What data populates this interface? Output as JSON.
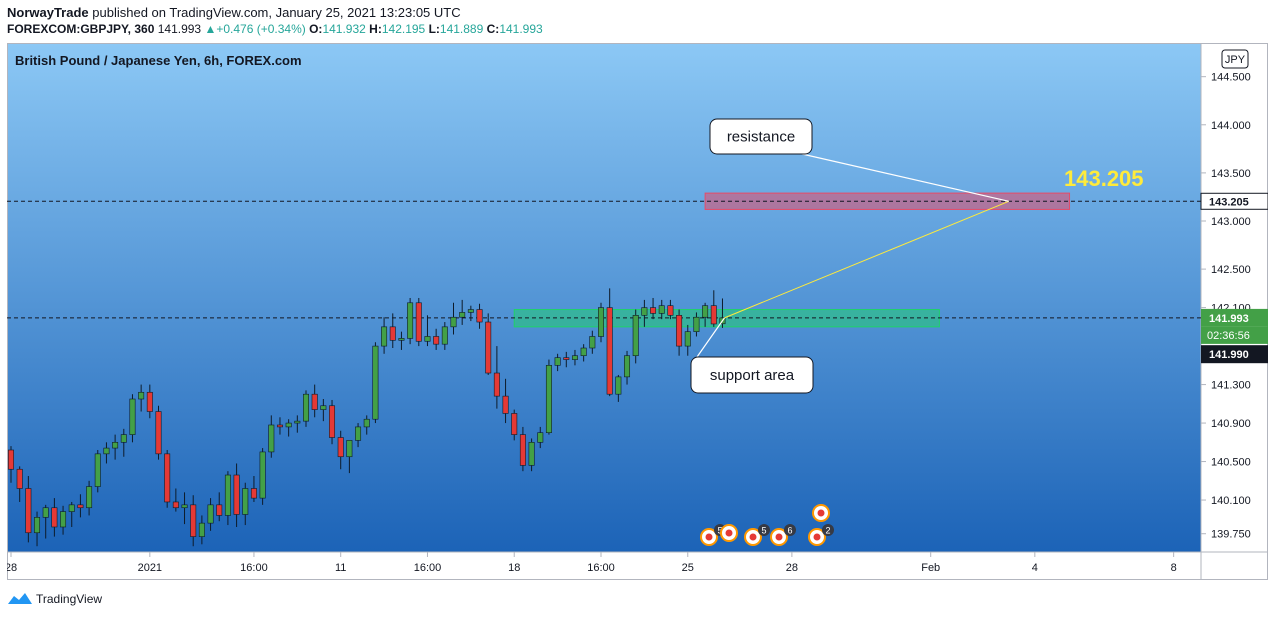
{
  "header": {
    "author": "NorwayTrade",
    "published_text": "published on TradingView.com, January 25, 2021 13:23:05 UTC",
    "symbol": "FOREXCOM:GBPJPY, 360",
    "last": "141.993",
    "change": "+0.476 (+0.34%)",
    "open_label": "O:",
    "open": "141.932",
    "high_label": "H:",
    "high": "142.195",
    "low_label": "L:",
    "low": "141.889",
    "close_label": "C:",
    "close": "141.993"
  },
  "footer": {
    "brand": "TradingView"
  },
  "chart_data": {
    "type": "candlestick",
    "title": "British Pound / Japanese Yen, 6h, FOREX.com",
    "currency": "JPY",
    "ylim": [
      139.56,
      144.85
    ],
    "y_ticks": [
      "139.750",
      "140.100",
      "140.500",
      "140.900",
      "141.300",
      "142.100",
      "142.500",
      "143.000",
      "143.500",
      "144.000",
      "144.500"
    ],
    "x_ticks": [
      {
        "label": "28",
        "i": 0
      },
      {
        "label": "2021",
        "i": 16
      },
      {
        "label": "16:00",
        "i": 28
      },
      {
        "label": "11",
        "i": 38
      },
      {
        "label": "16:00",
        "i": 48
      },
      {
        "label": "18",
        "i": 58
      },
      {
        "label": "16:00",
        "i": 68
      },
      {
        "label": "25",
        "i": 78
      },
      {
        "label": "28",
        "i": 90
      },
      {
        "label": "Feb",
        "i": 106
      },
      {
        "label": "4",
        "i": 118
      },
      {
        "label": "8",
        "i": 134
      }
    ],
    "x_total_slots": 136,
    "candles": [
      [
        140.62,
        140.66,
        140.28,
        140.42
      ],
      [
        140.42,
        140.45,
        140.08,
        140.22
      ],
      [
        140.22,
        140.35,
        139.66,
        139.76
      ],
      [
        139.76,
        139.98,
        139.62,
        139.92
      ],
      [
        139.92,
        140.05,
        139.7,
        140.02
      ],
      [
        140.02,
        140.12,
        139.72,
        139.82
      ],
      [
        139.82,
        140.04,
        139.74,
        139.98
      ],
      [
        139.98,
        140.08,
        139.82,
        140.05
      ],
      [
        140.05,
        140.16,
        139.92,
        140.02
      ],
      [
        140.02,
        140.3,
        139.94,
        140.24
      ],
      [
        140.24,
        140.62,
        140.18,
        140.58
      ],
      [
        140.58,
        140.7,
        140.48,
        140.64
      ],
      [
        140.64,
        140.78,
        140.52,
        140.7
      ],
      [
        140.7,
        140.84,
        140.55,
        140.78
      ],
      [
        140.78,
        141.2,
        140.7,
        141.15
      ],
      [
        141.15,
        141.3,
        141.02,
        141.22
      ],
      [
        141.22,
        141.3,
        140.95,
        141.02
      ],
      [
        141.02,
        141.08,
        140.52,
        140.58
      ],
      [
        140.58,
        140.62,
        140.02,
        140.08
      ],
      [
        140.08,
        140.22,
        139.98,
        140.02
      ],
      [
        140.02,
        140.18,
        139.85,
        140.05
      ],
      [
        140.05,
        140.15,
        139.62,
        139.72
      ],
      [
        139.72,
        139.94,
        139.64,
        139.86
      ],
      [
        139.86,
        140.12,
        139.78,
        140.05
      ],
      [
        140.05,
        140.18,
        139.88,
        139.94
      ],
      [
        139.94,
        140.4,
        139.84,
        140.36
      ],
      [
        140.36,
        140.48,
        139.82,
        139.95
      ],
      [
        139.95,
        140.28,
        139.84,
        140.22
      ],
      [
        140.22,
        140.35,
        140.08,
        140.12
      ],
      [
        140.12,
        140.64,
        140.05,
        140.6
      ],
      [
        140.6,
        140.98,
        140.54,
        140.88
      ],
      [
        140.88,
        140.96,
        140.78,
        140.86
      ],
      [
        140.86,
        140.94,
        140.76,
        140.9
      ],
      [
        140.9,
        140.98,
        140.8,
        140.92
      ],
      [
        140.92,
        141.24,
        140.86,
        141.2
      ],
      [
        141.2,
        141.3,
        140.96,
        141.04
      ],
      [
        141.04,
        141.15,
        140.92,
        141.08
      ],
      [
        141.08,
        141.14,
        140.68,
        140.75
      ],
      [
        140.75,
        140.82,
        140.42,
        140.55
      ],
      [
        140.55,
        140.7,
        140.38,
        140.72
      ],
      [
        140.72,
        140.9,
        140.65,
        140.86
      ],
      [
        140.86,
        140.98,
        140.78,
        140.94
      ],
      [
        140.94,
        141.74,
        140.9,
        141.7
      ],
      [
        141.7,
        142.0,
        141.62,
        141.9
      ],
      [
        141.9,
        142.04,
        141.68,
        141.76
      ],
      [
        141.76,
        141.85,
        141.66,
        141.78
      ],
      [
        141.78,
        142.2,
        141.72,
        142.15
      ],
      [
        142.15,
        142.2,
        141.7,
        141.75
      ],
      [
        141.75,
        142.02,
        141.7,
        141.8
      ],
      [
        141.8,
        141.88,
        141.66,
        141.72
      ],
      [
        141.72,
        141.95,
        141.66,
        141.9
      ],
      [
        141.9,
        142.15,
        141.82,
        142.0
      ],
      [
        142.0,
        142.18,
        141.92,
        142.05
      ],
      [
        142.05,
        142.12,
        141.96,
        142.08
      ],
      [
        142.08,
        142.14,
        141.88,
        141.95
      ],
      [
        141.95,
        142.04,
        141.4,
        141.42
      ],
      [
        141.42,
        141.7,
        141.05,
        141.18
      ],
      [
        141.18,
        141.36,
        140.9,
        141.0
      ],
      [
        141.0,
        141.04,
        140.72,
        140.78
      ],
      [
        140.78,
        140.86,
        140.4,
        140.46
      ],
      [
        140.46,
        140.74,
        140.4,
        140.7
      ],
      [
        140.7,
        140.86,
        140.64,
        140.8
      ],
      [
        140.8,
        141.56,
        140.78,
        141.5
      ],
      [
        141.5,
        141.62,
        141.44,
        141.58
      ],
      [
        141.58,
        141.64,
        141.48,
        141.56
      ],
      [
        141.56,
        141.66,
        141.5,
        141.6
      ],
      [
        141.6,
        141.72,
        141.54,
        141.68
      ],
      [
        141.68,
        141.86,
        141.62,
        141.8
      ],
      [
        141.8,
        142.15,
        141.74,
        142.1
      ],
      [
        142.1,
        142.3,
        141.18,
        141.2
      ],
      [
        141.2,
        141.4,
        141.12,
        141.38
      ],
      [
        141.38,
        141.65,
        141.3,
        141.6
      ],
      [
        141.6,
        142.08,
        141.52,
        142.02
      ],
      [
        142.02,
        142.18,
        141.9,
        142.1
      ],
      [
        142.1,
        142.2,
        141.98,
        142.04
      ],
      [
        142.04,
        142.18,
        141.98,
        142.12
      ],
      [
        142.12,
        142.18,
        141.98,
        142.02
      ],
      [
        142.02,
        142.08,
        141.6,
        141.7
      ],
      [
        141.7,
        141.92,
        141.6,
        141.85
      ],
      [
        141.85,
        142.05,
        141.8,
        142.0
      ],
      [
        142.0,
        142.15,
        141.9,
        142.12
      ],
      [
        142.12,
        142.28,
        141.9,
        141.93
      ],
      [
        141.932,
        142.195,
        141.889,
        141.993
      ]
    ],
    "levels": [
      {
        "name": "resistance",
        "value": 143.205,
        "label": "143.205",
        "color": "#e54c69",
        "box": [
          143.12,
          143.29
        ],
        "i0": 80,
        "i1": 122
      },
      {
        "name": "support",
        "value": 141.993,
        "label": "141.993",
        "color": "#1fd16a",
        "box": [
          141.9,
          142.08
        ],
        "i0": 58,
        "i1": 107
      }
    ],
    "current_price": {
      "value": 141.993,
      "label": "141.993",
      "countdown": "02:36:56"
    },
    "crosshair_price": {
      "value": 141.99,
      "label": "141.990"
    },
    "annotations": [
      {
        "text": "resistance"
      },
      {
        "text": "support area"
      }
    ],
    "big_price_label": "143.205",
    "events": [
      {
        "kind": "us",
        "count": "5"
      },
      {
        "kind": "us",
        "count": ""
      },
      {
        "kind": "us",
        "count": "5"
      },
      {
        "kind": "us",
        "count": "6"
      },
      {
        "kind": "uk",
        "count": "2"
      }
    ]
  }
}
